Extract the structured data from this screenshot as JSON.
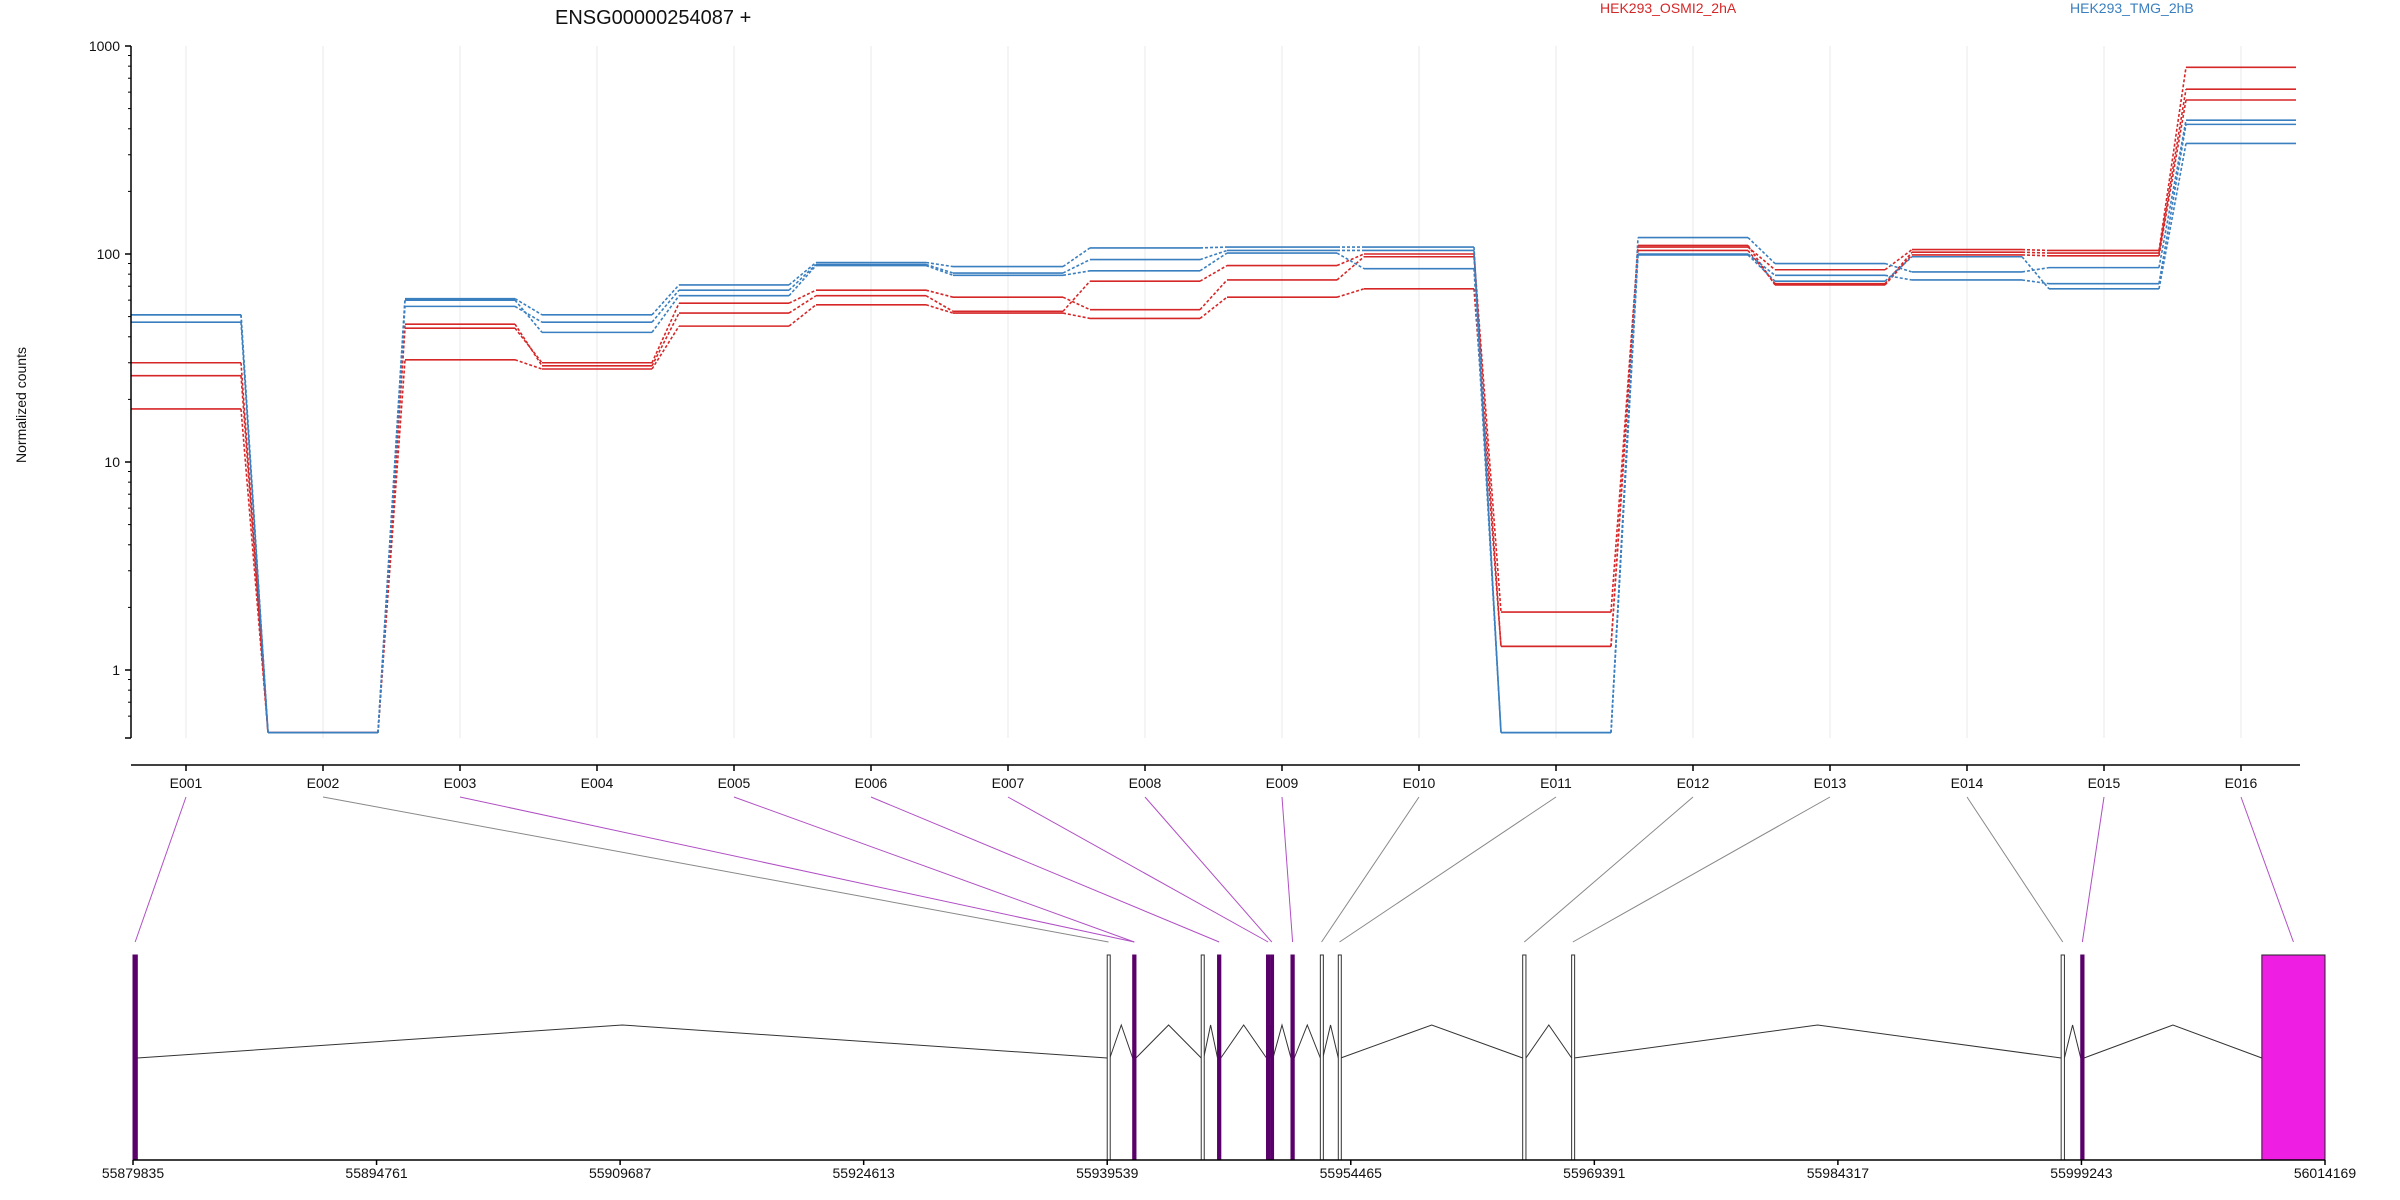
{
  "chart_data": {
    "type": "line",
    "title": "ENSG00000254087 +",
    "ylabel": "Normalized counts",
    "yscale": "log",
    "ylim": [
      0.5,
      1000
    ],
    "yticks": [
      1,
      10,
      100,
      1000
    ],
    "ytick_labels": [
      "1",
      "10",
      "100",
      "1000"
    ],
    "categories": [
      "E001",
      "E002",
      "E003",
      "E004",
      "E005",
      "E006",
      "E007",
      "E008",
      "E009",
      "E010",
      "E011",
      "E012",
      "E013",
      "E014",
      "E015",
      "E016"
    ],
    "legend": [
      {
        "name": "HEK293_OSMI2_2hA",
        "color": "#d62728"
      },
      {
        "name": "HEK293_TMG_2hB",
        "color": "#3a7fbf"
      }
    ],
    "series": [
      {
        "group": "HEK293_OSMI2_2hA",
        "color": "#d62728",
        "values": [
          30,
          0.5,
          46,
          29,
          52,
          63,
          53,
          74,
          88,
          100,
          1.9,
          108,
          84,
          105,
          104,
          790
        ]
      },
      {
        "group": "HEK293_OSMI2_2hA",
        "color": "#d62728",
        "values": [
          26,
          0.5,
          44,
          30,
          58,
          67,
          62,
          54,
          75,
          97,
          1.3,
          104,
          72,
          102,
          101,
          620
        ]
      },
      {
        "group": "HEK293_OSMI2_2hA",
        "color": "#d62728",
        "values": [
          18,
          0.5,
          31,
          28,
          45,
          57,
          52,
          49,
          62,
          68,
          1.3,
          110,
          71,
          99,
          98,
          550
        ]
      },
      {
        "group": "HEK293_TMG_2hB",
        "color": "#3a7fbf",
        "values": [
          51,
          0.5,
          61,
          51,
          71,
          91,
          87,
          107,
          108,
          108,
          0.5,
          120,
          90,
          82,
          86,
          440
        ]
      },
      {
        "group": "HEK293_TMG_2hB",
        "color": "#3a7fbf",
        "values": [
          47,
          0.5,
          56,
          47,
          67,
          89,
          81,
          94,
          104,
          104,
          0.5,
          100,
          79,
          75,
          72,
          420
        ]
      },
      {
        "group": "HEK293_TMG_2hB",
        "color": "#3a7fbf",
        "values": [
          51,
          0.5,
          60,
          42,
          63,
          88,
          79,
          83,
          101,
          85,
          0.5,
          99,
          74,
          97,
          68,
          340
        ]
      }
    ],
    "genomic_axis": {
      "min": 55879835,
      "max": 56014169,
      "ticks": [
        55879835,
        55894761,
        55909687,
        55924613,
        55939539,
        55954465,
        55969391,
        55984317,
        55999243,
        56014169
      ],
      "tick_labels": [
        "55879835",
        "55894761",
        "55909687",
        "55924613",
        "55939539",
        "55954465",
        "55969391",
        "55984317",
        "55999243",
        "56014169"
      ]
    },
    "exons": [
      {
        "id": "E001",
        "start": 55879835,
        "end": 55880100,
        "highlight": true
      },
      {
        "id": "E002",
        "start": 55939539,
        "end": 55939700,
        "highlight": false
      },
      {
        "id": "E003",
        "start": 55941100,
        "end": 55941300,
        "highlight": true
      },
      {
        "id": "E004",
        "start": 55945300,
        "end": 55945450,
        "highlight": false
      },
      {
        "id": "E005",
        "start": 55946300,
        "end": 55946500,
        "highlight": true
      },
      {
        "id": "E006",
        "start": 55949300,
        "end": 55949500,
        "highlight": true
      },
      {
        "id": "E007",
        "start": 55949550,
        "end": 55949700,
        "highlight": true
      },
      {
        "id": "E008",
        "start": 55950800,
        "end": 55951000,
        "highlight": true
      },
      {
        "id": "E009",
        "start": 55952600,
        "end": 55952750,
        "highlight": false
      },
      {
        "id": "E010",
        "start": 55953700,
        "end": 55953850,
        "highlight": false
      },
      {
        "id": "E011",
        "start": 55965000,
        "end": 55965200,
        "highlight": false
      },
      {
        "id": "E012",
        "start": 55968000,
        "end": 55968150,
        "highlight": false
      },
      {
        "id": "E013",
        "start": 55998000,
        "end": 55998200,
        "highlight": false
      },
      {
        "id": "E014",
        "start": 55999200,
        "end": 55999400,
        "highlight": true
      },
      {
        "id": "E015",
        "start": 56010300,
        "end": 56014169,
        "highlight": true
      }
    ],
    "exon_connectors": [
      "E001",
      "E002",
      "E003",
      "E005",
      "E006",
      "E007",
      "E008",
      "E009",
      "E010",
      "E011",
      "E012",
      "E013",
      "E014",
      "E015",
      "E016"
    ],
    "connector_targets": [
      0,
      1,
      2,
      2,
      4,
      5,
      6,
      7,
      8,
      9,
      10,
      11,
      12,
      13,
      14
    ],
    "colors": {
      "highlight": "#ee1fe2",
      "highlight_dark": "#5a006a",
      "intron": "#333333",
      "connector_hl": "#b04fc4",
      "connector": "#888888"
    }
  }
}
